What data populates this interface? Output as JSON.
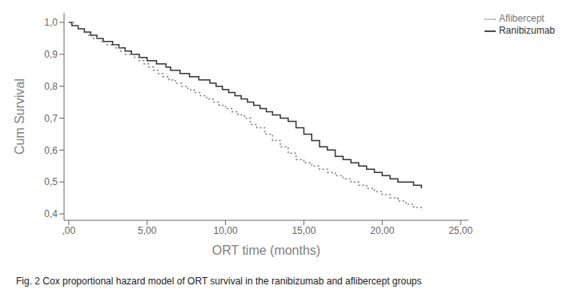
{
  "chart_data": {
    "type": "line",
    "title": "",
    "xlabel": "ORT time (months)",
    "ylabel": "Cum Survival",
    "caption": "Fig. 2 Cox proportional hazard model of ORT survival in the ranibizumab and aflibercept groups",
    "xlim": [
      -0.3,
      25.5
    ],
    "ylim": [
      0.38,
      1.03
    ],
    "xticks": [
      {
        "value": 0,
        "label": ",00"
      },
      {
        "value": 5,
        "label": "5,00"
      },
      {
        "value": 10,
        "label": "10,00"
      },
      {
        "value": 15,
        "label": "15,00"
      },
      {
        "value": 20,
        "label": "20,00"
      },
      {
        "value": 25,
        "label": "25,00"
      }
    ],
    "yticks": [
      {
        "value": 0.4,
        "label": "0,4"
      },
      {
        "value": 0.5,
        "label": "0,5"
      },
      {
        "value": 0.6,
        "label": "0,6"
      },
      {
        "value": 0.7,
        "label": "0,7"
      },
      {
        "value": 0.8,
        "label": "0,8"
      },
      {
        "value": 0.9,
        "label": "0,9"
      },
      {
        "value": 1.0,
        "label": "1,0"
      }
    ],
    "grid": false,
    "legend": "right",
    "series": [
      {
        "name": "Ranibizumab",
        "color": "#333333",
        "line_style": "solid",
        "x": [
          0.0,
          0.2,
          0.4,
          0.6,
          0.8,
          1.0,
          1.2,
          1.4,
          1.6,
          1.8,
          2.0,
          2.2,
          2.4,
          2.6,
          2.8,
          3.0,
          3.2,
          3.4,
          3.6,
          3.8,
          4.0,
          4.2,
          4.5,
          4.8,
          5.0,
          5.3,
          5.6,
          5.9,
          6.2,
          6.5,
          6.8,
          7.1,
          7.4,
          7.7,
          8.0,
          8.3,
          8.6,
          9.0,
          9.4,
          9.8,
          10.2,
          10.6,
          11.0,
          11.4,
          11.8,
          12.2,
          12.6,
          13.0,
          13.5,
          14.0,
          14.5,
          15.0,
          15.5,
          16.0,
          16.5,
          17.0,
          17.5,
          18.0,
          18.5,
          19.0,
          19.5,
          20.0,
          20.5,
          21.0,
          21.5,
          22.0,
          22.5
        ],
        "values": [
          1.0,
          0.99,
          0.99,
          0.98,
          0.98,
          0.97,
          0.97,
          0.96,
          0.96,
          0.95,
          0.95,
          0.94,
          0.94,
          0.94,
          0.93,
          0.93,
          0.92,
          0.92,
          0.91,
          0.91,
          0.9,
          0.9,
          0.89,
          0.89,
          0.88,
          0.88,
          0.87,
          0.87,
          0.86,
          0.85,
          0.85,
          0.84,
          0.84,
          0.83,
          0.83,
          0.82,
          0.82,
          0.81,
          0.8,
          0.79,
          0.78,
          0.77,
          0.76,
          0.75,
          0.74,
          0.73,
          0.72,
          0.71,
          0.7,
          0.69,
          0.67,
          0.65,
          0.63,
          0.61,
          0.6,
          0.58,
          0.57,
          0.56,
          0.55,
          0.54,
          0.53,
          0.52,
          0.51,
          0.5,
          0.5,
          0.49,
          0.48
        ]
      },
      {
        "name": "Aflibercept",
        "color": "#777777",
        "line_style": "dotted",
        "x": [
          0.0,
          0.3,
          0.6,
          0.9,
          1.2,
          1.5,
          1.8,
          2.1,
          2.4,
          2.7,
          3.0,
          3.3,
          3.6,
          3.9,
          4.2,
          4.5,
          4.8,
          5.1,
          5.4,
          5.7,
          6.0,
          6.4,
          6.8,
          7.2,
          7.6,
          8.0,
          8.4,
          8.8,
          9.2,
          9.6,
          10.0,
          10.4,
          10.8,
          11.2,
          11.6,
          12.0,
          12.5,
          13.0,
          13.5,
          14.0,
          14.5,
          15.0,
          15.5,
          16.0,
          16.5,
          17.0,
          17.5,
          18.0,
          18.5,
          19.0,
          19.5,
          20.0,
          20.5,
          21.0,
          21.5,
          22.0,
          22.5
        ],
        "values": [
          1.0,
          0.99,
          0.98,
          0.97,
          0.96,
          0.95,
          0.95,
          0.94,
          0.93,
          0.93,
          0.92,
          0.91,
          0.9,
          0.9,
          0.89,
          0.88,
          0.87,
          0.86,
          0.85,
          0.84,
          0.83,
          0.82,
          0.81,
          0.8,
          0.79,
          0.78,
          0.77,
          0.76,
          0.75,
          0.74,
          0.73,
          0.72,
          0.71,
          0.7,
          0.68,
          0.67,
          0.65,
          0.63,
          0.61,
          0.59,
          0.57,
          0.56,
          0.55,
          0.54,
          0.53,
          0.52,
          0.51,
          0.5,
          0.49,
          0.48,
          0.47,
          0.46,
          0.45,
          0.44,
          0.43,
          0.42,
          0.41
        ]
      }
    ]
  }
}
